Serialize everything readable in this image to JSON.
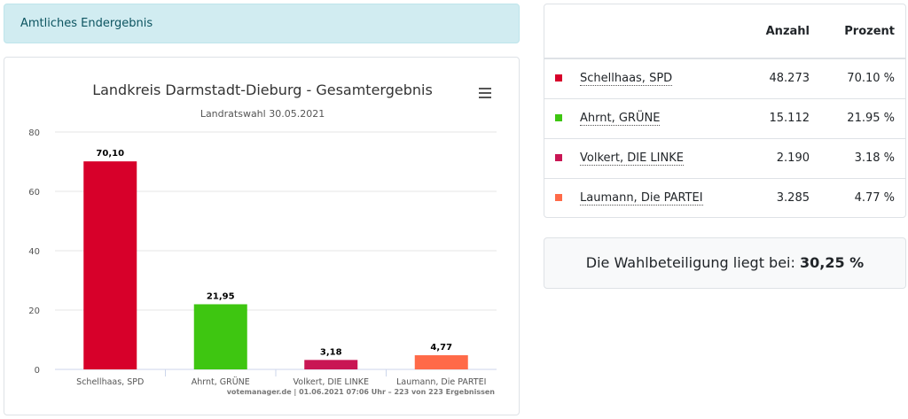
{
  "banner": {
    "text": "Amtliches Endergebnis"
  },
  "chart_data": {
    "type": "bar",
    "title": "Landkreis Darmstadt-Dieburg - Gesamtergebnis",
    "subtitle": "Landratswahl 30.05.2021",
    "categories": [
      "Schellhaas, SPD",
      "Ahrnt, GRÜNE",
      "Volkert, DIE LINKE",
      "Laumann, Die PARTEI"
    ],
    "values": [
      70.1,
      21.95,
      3.18,
      4.77
    ],
    "value_labels": [
      "70,10",
      "21,95",
      "3,18",
      "4,77"
    ],
    "colors": [
      "#d7002a",
      "#3ec611",
      "#c91654",
      "#ff6a48"
    ],
    "yticks": [
      0,
      20,
      40,
      60,
      80
    ],
    "ylim": [
      0,
      80
    ],
    "grid": true,
    "legend": "none",
    "credits": "votemanager.de | 01.06.2021 07:06 Uhr – 223 von 223 Ergebnissen"
  },
  "results": {
    "header": {
      "count": "Anzahl",
      "percent": "Prozent"
    },
    "rows": [
      {
        "name": "Schellhaas, SPD",
        "count": "48.273",
        "percent": "70.10 %",
        "color": "#d7002a"
      },
      {
        "name": "Ahrnt, GRÜNE",
        "count": "15.112",
        "percent": "21.95 %",
        "color": "#3ec611"
      },
      {
        "name": "Volkert, DIE LINKE",
        "count": "2.190",
        "percent": "3.18 %",
        "color": "#c91654"
      },
      {
        "name": "Laumann, Die PARTEI",
        "count": "3.285",
        "percent": "4.77 %",
        "color": "#ff6a48"
      }
    ]
  },
  "turnout": {
    "label": "Die Wahlbeteiligung liegt bei:",
    "value": "30,25 %"
  },
  "icons": {
    "chart_menu": "hamburger-menu-icon"
  }
}
